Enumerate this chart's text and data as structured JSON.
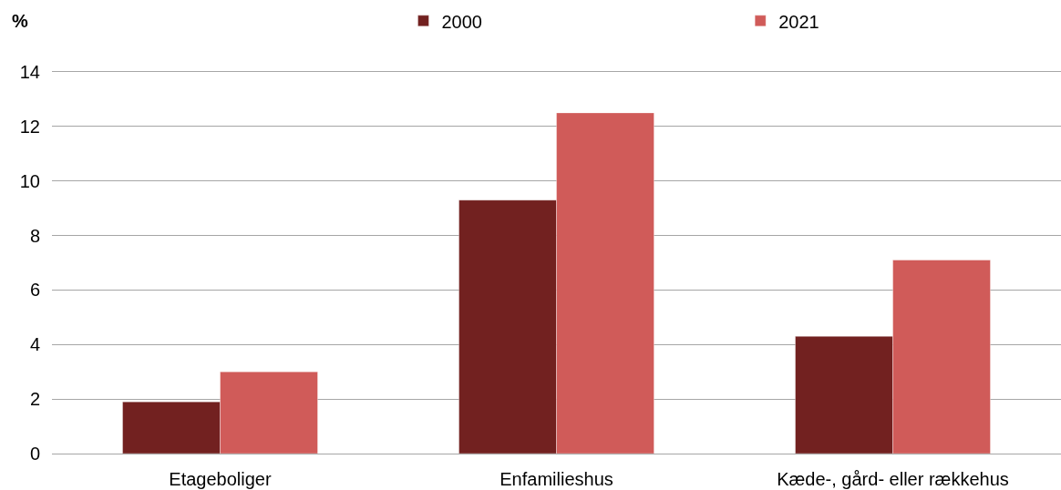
{
  "chart_data": {
    "type": "bar",
    "ylabel": "%",
    "categories": [
      "Etageboliger",
      "Enfamilieshus",
      "Kæde-, gård- eller rækkehus"
    ],
    "series": [
      {
        "name": "2000",
        "color": "#722120",
        "values": [
          1.9,
          9.3,
          4.3
        ]
      },
      {
        "name": "2021",
        "color": "#d05b59",
        "values": [
          3.0,
          12.5,
          7.1
        ]
      }
    ],
    "ylim": [
      0,
      14
    ],
    "yticks": [
      0,
      2,
      4,
      6,
      8,
      10,
      12,
      14
    ],
    "grid": "y",
    "legend": "top"
  }
}
